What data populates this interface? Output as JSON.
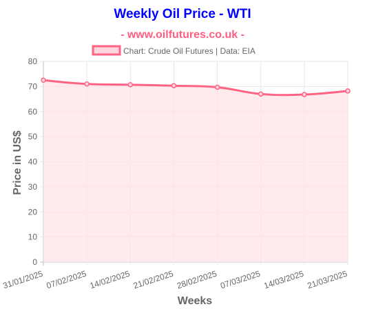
{
  "colors": {
    "title": "#0000ff",
    "subtitle": "#ff5e7e",
    "line": "#ff6384",
    "fill": "#ffe3e7",
    "point_fill": "#ffd6df",
    "grid": "#e6e6e6",
    "axis": "#bfbfbf",
    "text": "#666666"
  },
  "chart_data": {
    "type": "area",
    "title": "Weekly Oil Price - WTI",
    "subtitle": "- www.oilfutures.co.uk -",
    "legend": {
      "label": "Chart: Crude Oil Futures | Data: EIA",
      "position": "top"
    },
    "xlabel": "Weeks",
    "ylabel": "Price in US$",
    "categories": [
      "31/01/2025",
      "07/02/2025",
      "14/02/2025",
      "21/02/2025",
      "28/02/2025",
      "07/03/2025",
      "14/03/2025",
      "21/03/2025"
    ],
    "series": [
      {
        "name": "Chart: Crude Oil Futures | Data: EIA",
        "values": [
          72.5,
          71.0,
          70.7,
          70.3,
          69.7,
          67.0,
          66.8,
          68.2
        ]
      }
    ],
    "ylim": [
      0,
      80
    ],
    "yticks": [
      0,
      10,
      20,
      30,
      40,
      50,
      60,
      70,
      80
    ],
    "grid": true
  }
}
